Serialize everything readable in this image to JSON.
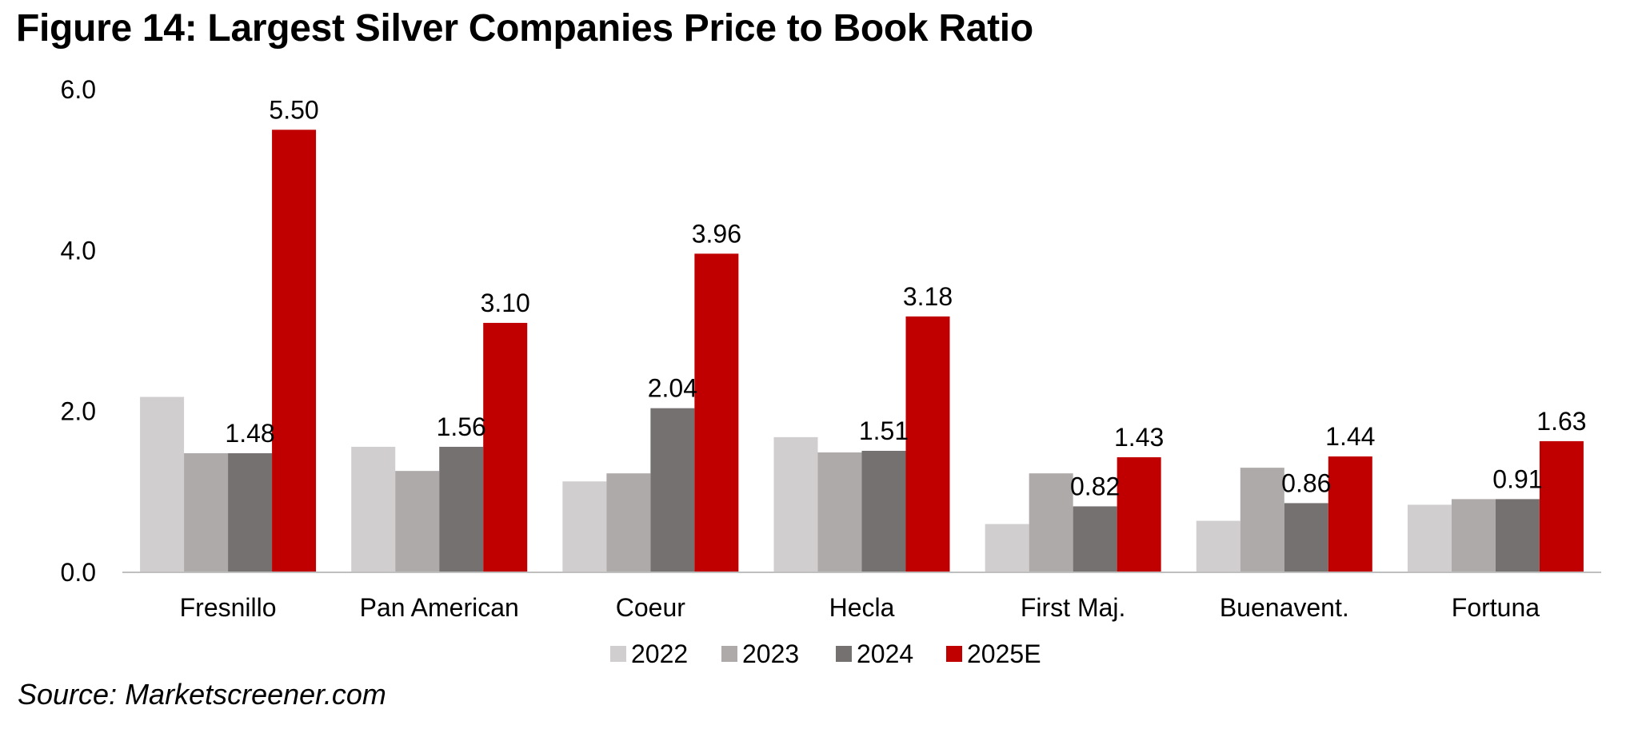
{
  "title": "Figure 14: Largest Silver Companies Price to Book Ratio",
  "source": "Source: Marketscreener.com",
  "chart_data": {
    "type": "bar",
    "ylim": [
      0,
      6
    ],
    "yticks": [
      "0.0",
      "2.0",
      "4.0",
      "6.0"
    ],
    "categories": [
      "Fresnillo",
      "Pan American",
      "Coeur",
      "Hecla",
      "First Maj.",
      "Buenavent.",
      "Fortuna"
    ],
    "series": [
      {
        "name": "2022",
        "color": "#d0cecf",
        "values": [
          2.18,
          1.56,
          1.13,
          1.68,
          0.6,
          0.64,
          0.84
        ]
      },
      {
        "name": "2023",
        "color": "#aeaaa9",
        "values": [
          1.48,
          1.26,
          1.23,
          1.49,
          1.23,
          1.3,
          0.91
        ]
      },
      {
        "name": "2024",
        "color": "#767171",
        "values": [
          1.48,
          1.56,
          2.04,
          1.51,
          0.82,
          0.86,
          0.91
        ]
      },
      {
        "name": "2025E",
        "color": "#c00000",
        "values": [
          5.5,
          3.1,
          3.96,
          3.18,
          1.43,
          1.44,
          1.63
        ]
      }
    ],
    "data_labels": {
      "2024": [
        "1.48",
        "1.56",
        "2.04",
        "1.51",
        "0.82",
        "0.86",
        "0.91"
      ],
      "2025E": [
        "5.50",
        "3.10",
        "3.96",
        "3.18",
        "1.43",
        "1.44",
        "1.63"
      ]
    },
    "legend": {
      "position": "bottom",
      "items": [
        "2022",
        "2023",
        "2024",
        "2025E"
      ]
    },
    "grid": false
  }
}
